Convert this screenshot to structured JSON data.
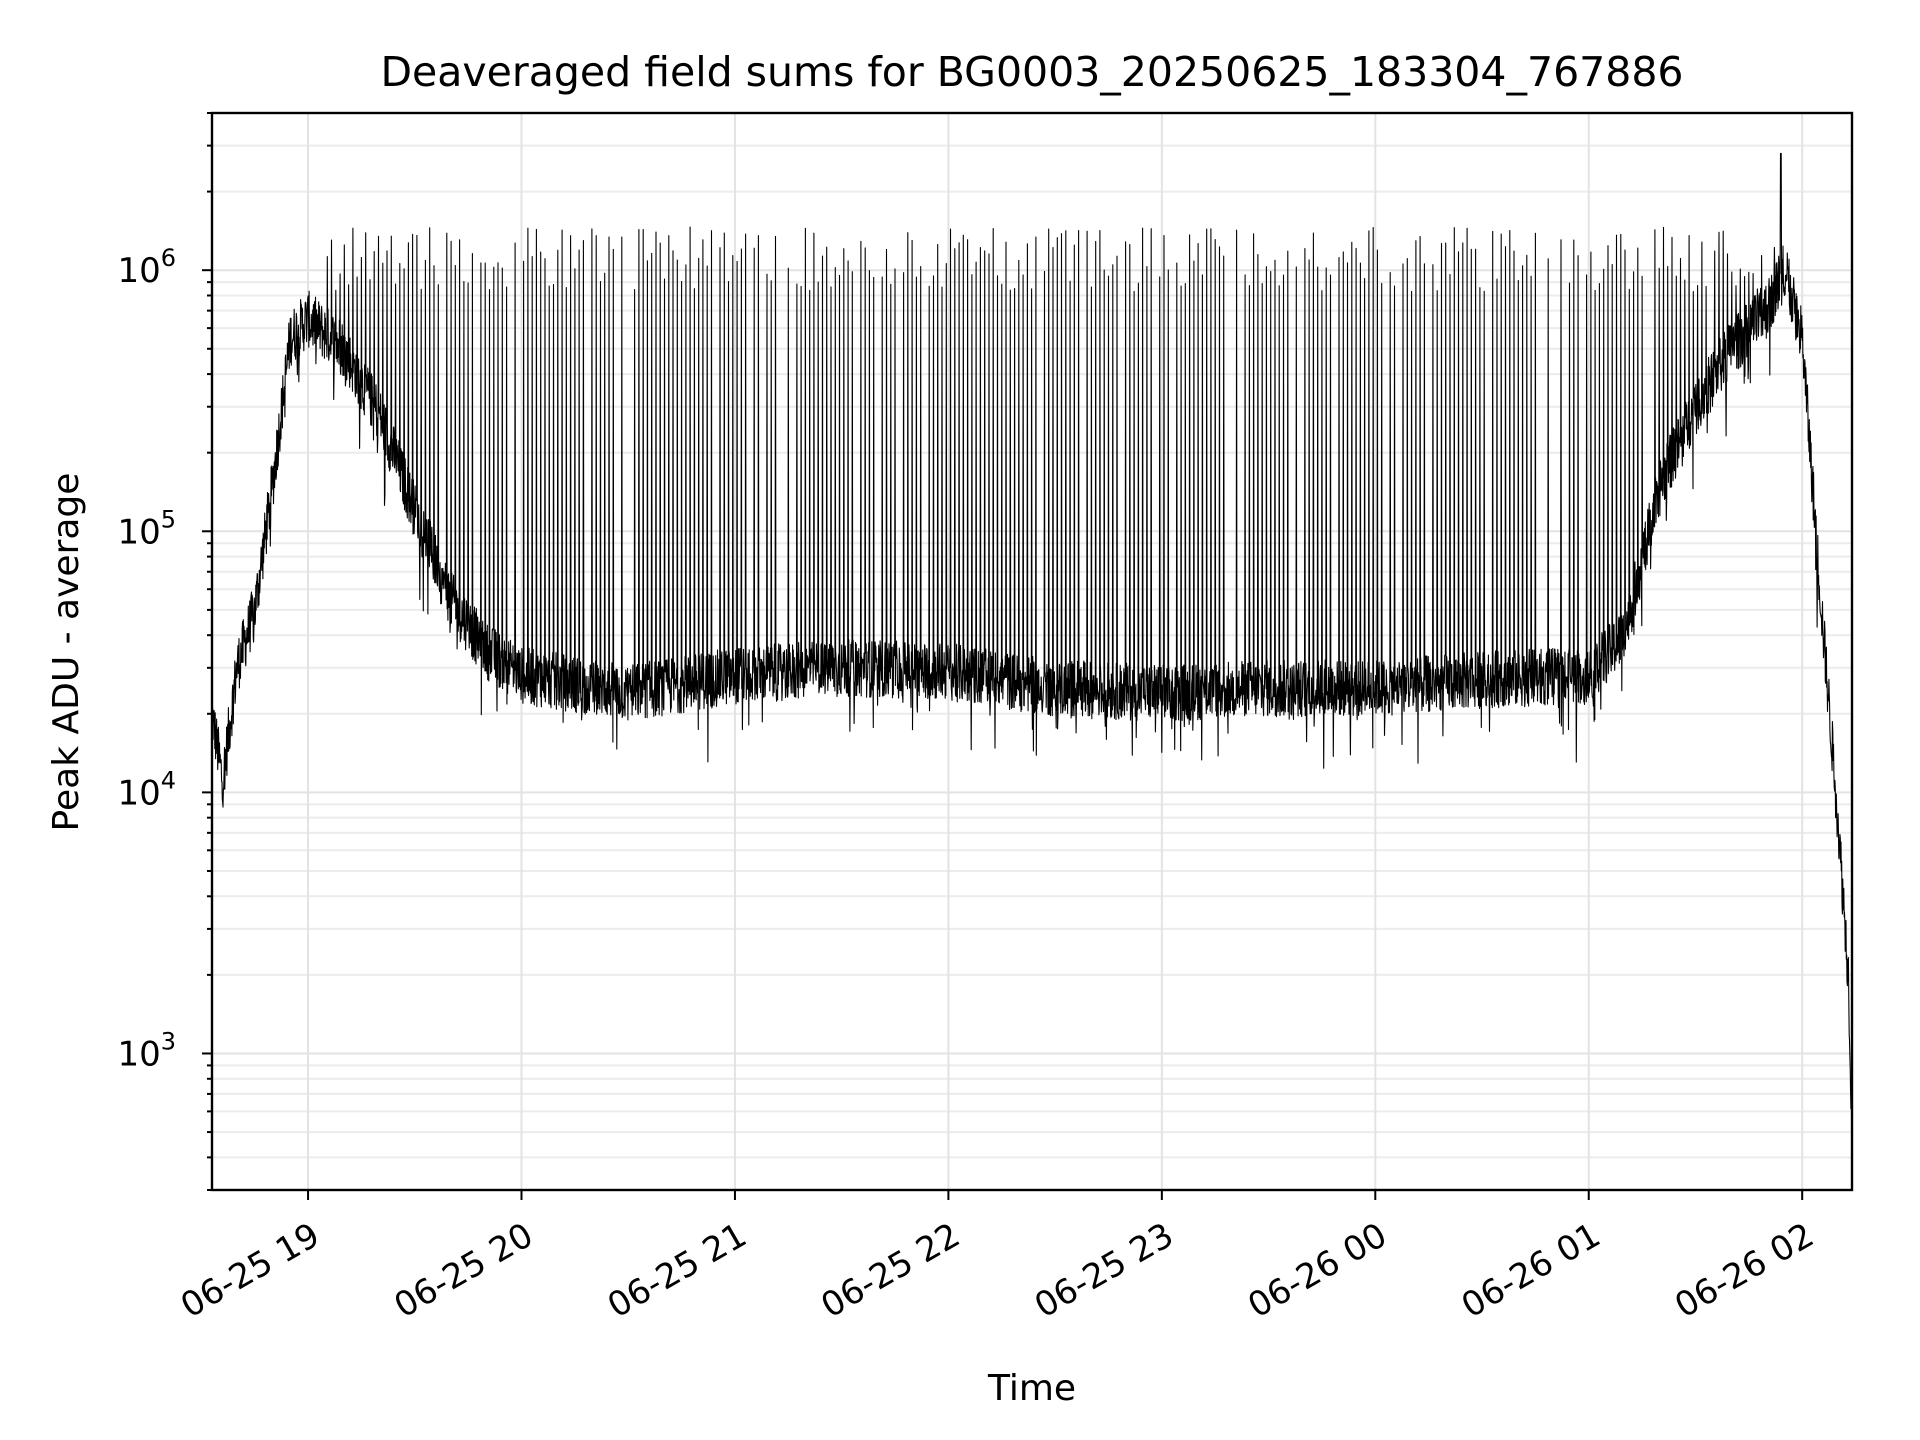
{
  "chart_data": {
    "type": "line",
    "title": "Deaveraged field sums for BG0003_20250625_183304_767886",
    "xlabel": "Time",
    "ylabel": "Peak ADU - average",
    "yscale": "log",
    "ylim": [
      300,
      4000000
    ],
    "xlim": [
      "2025-06-25 18:33",
      "2025-06-26 02:14"
    ],
    "grid": true,
    "line_color": "#000000",
    "x_ticks": [
      {
        "x": "2025-06-25 19:00",
        "label": "06-25 19"
      },
      {
        "x": "2025-06-25 20:00",
        "label": "06-25 20"
      },
      {
        "x": "2025-06-25 21:00",
        "label": "06-25 21"
      },
      {
        "x": "2025-06-25 22:00",
        "label": "06-25 22"
      },
      {
        "x": "2025-06-25 23:00",
        "label": "06-25 23"
      },
      {
        "x": "2025-06-26 00:00",
        "label": "06-26 00"
      },
      {
        "x": "2025-06-26 01:00",
        "label": "06-26 01"
      },
      {
        "x": "2025-06-26 02:00",
        "label": "06-26 02"
      }
    ],
    "y_ticks": [
      {
        "value": 1000,
        "base": "10",
        "exp": "3"
      },
      {
        "value": 10000,
        "base": "10",
        "exp": "4"
      },
      {
        "value": 100000,
        "base": "10",
        "exp": "5"
      },
      {
        "value": 1000000,
        "base": "10",
        "exp": "6"
      }
    ],
    "series": [
      {
        "baseline": {
          "x": [
            "2025-06-25 18:33",
            "2025-06-25 18:36",
            "2025-06-25 18:40",
            "2025-06-25 18:45",
            "2025-06-25 18:50",
            "2025-06-25 18:55",
            "2025-06-25 19:00",
            "2025-06-25 19:10",
            "2025-06-25 19:20",
            "2025-06-25 19:30",
            "2025-06-25 19:40",
            "2025-06-25 19:50",
            "2025-06-25 20:00",
            "2025-06-25 20:30",
            "2025-06-25 21:00",
            "2025-06-25 21:30",
            "2025-06-25 22:00",
            "2025-06-25 22:30",
            "2025-06-25 23:00",
            "2025-06-25 23:30",
            "2025-06-26 00:00",
            "2025-06-26 00:30",
            "2025-06-26 01:00",
            "2025-06-26 01:10",
            "2025-06-26 01:20",
            "2025-06-26 01:30",
            "2025-06-26 01:40",
            "2025-06-26 01:50",
            "2025-06-26 01:55",
            "2025-06-26 02:00",
            "2025-06-26 02:05",
            "2025-06-26 02:10",
            "2025-06-26 02:13",
            "2025-06-26 02:14"
          ],
          "y": [
            20000,
            11000,
            30000,
            50000,
            150000,
            550000,
            650000,
            500000,
            280000,
            120000,
            55000,
            35000,
            28000,
            24000,
            28000,
            30000,
            29000,
            25000,
            24000,
            25000,
            25000,
            27000,
            28000,
            40000,
            150000,
            300000,
            500000,
            700000,
            1000000,
            550000,
            60000,
            8000,
            2000,
            500
          ]
        },
        "spike_peak_median": 1100000,
        "spike_max": 2800000,
        "spike_interval_minutes": 1.2
      }
    ]
  }
}
